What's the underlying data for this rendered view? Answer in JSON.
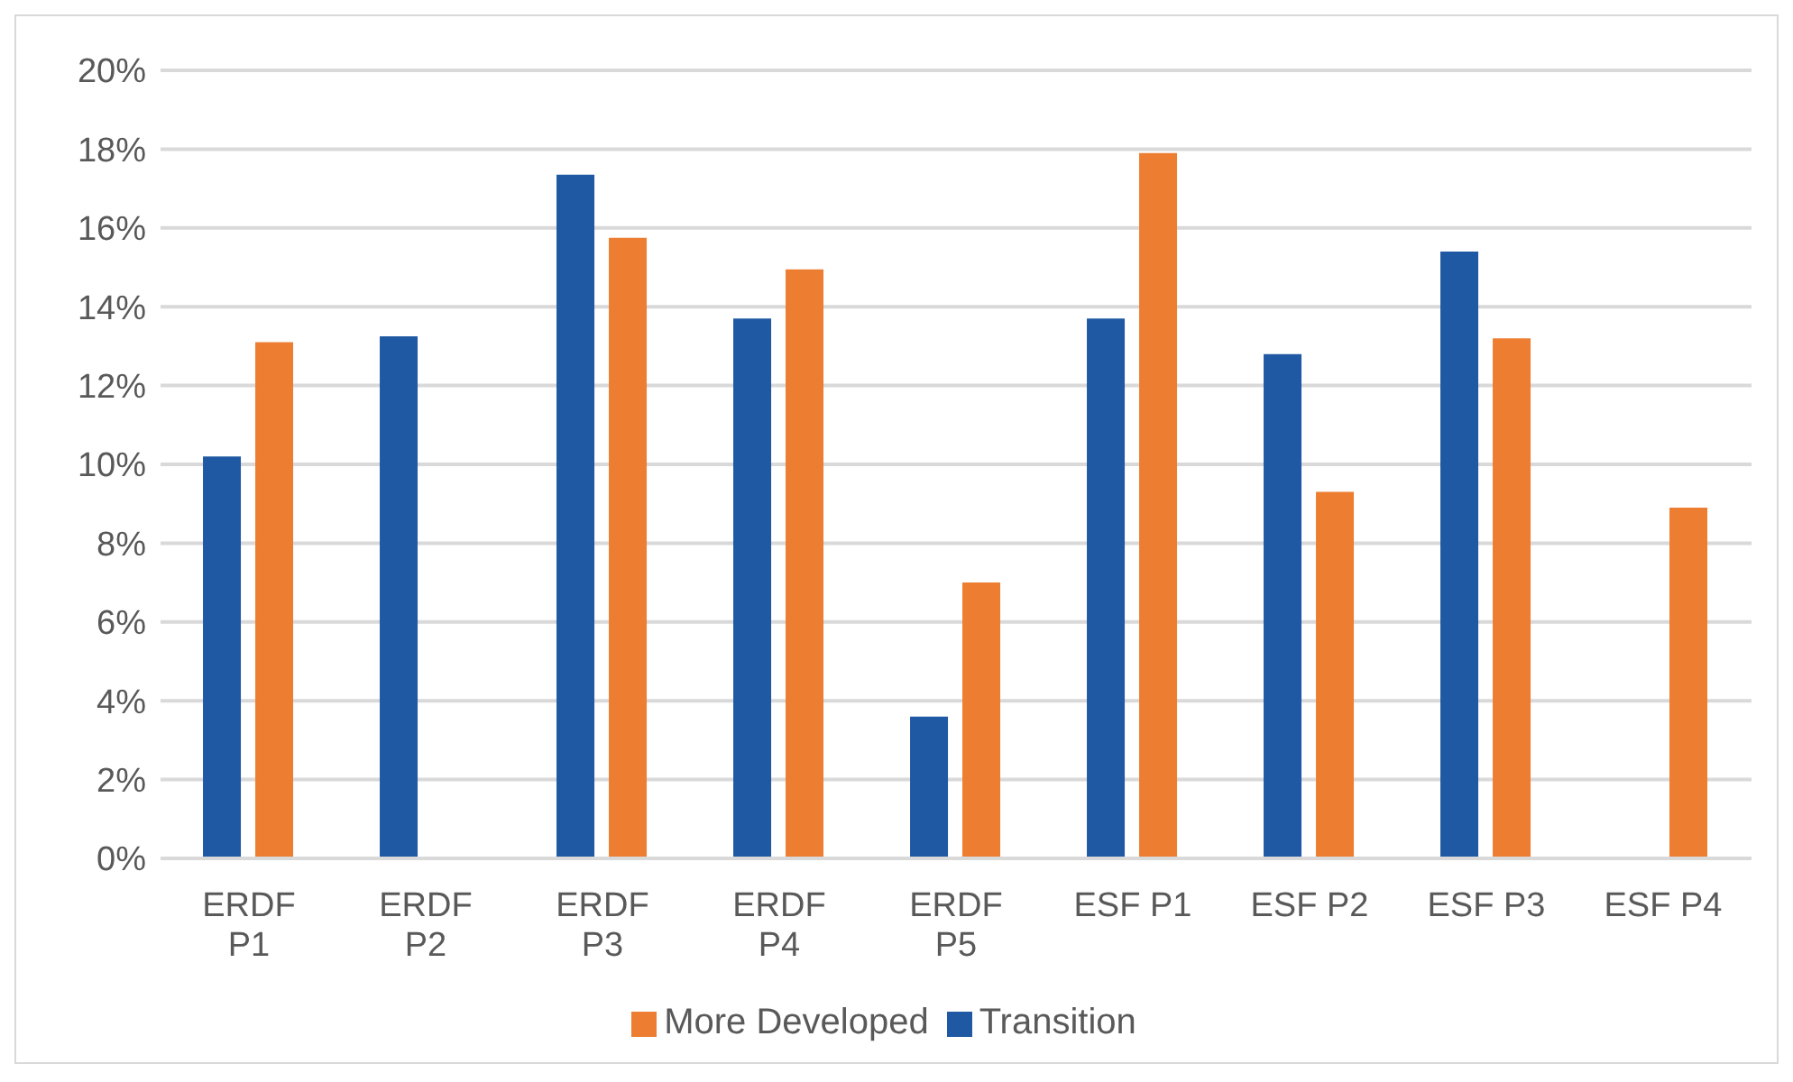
{
  "chart_data": {
    "type": "bar",
    "categories": [
      "ERDF P1",
      "ERDF P2",
      "ERDF P3",
      "ERDF P4",
      "ERDF P5",
      "ESF P1",
      "ESF P2",
      "ESF P3",
      "ESF P4"
    ],
    "series": [
      {
        "name": "Transition",
        "color": "#1f58a3",
        "values": [
          10.2,
          13.25,
          17.35,
          13.7,
          3.6,
          13.7,
          12.8,
          15.4,
          null
        ]
      },
      {
        "name": "More Developed",
        "color": "#ed7d31",
        "values": [
          13.1,
          null,
          15.75,
          14.95,
          7.0,
          17.9,
          9.3,
          13.2,
          8.9
        ]
      }
    ],
    "ylim": [
      0,
      20
    ],
    "yticks": [
      {
        "value": 0,
        "label": "0%"
      },
      {
        "value": 2,
        "label": "2%"
      },
      {
        "value": 4,
        "label": "4%"
      },
      {
        "value": 6,
        "label": "6%"
      },
      {
        "value": 8,
        "label": "8%"
      },
      {
        "value": 10,
        "label": "10%"
      },
      {
        "value": 12,
        "label": "12%"
      },
      {
        "value": 14,
        "label": "14%"
      },
      {
        "value": 16,
        "label": "16%"
      },
      {
        "value": 18,
        "label": "18%"
      },
      {
        "value": 20,
        "label": "20%"
      }
    ],
    "grid": "y",
    "legend": "bottom"
  }
}
